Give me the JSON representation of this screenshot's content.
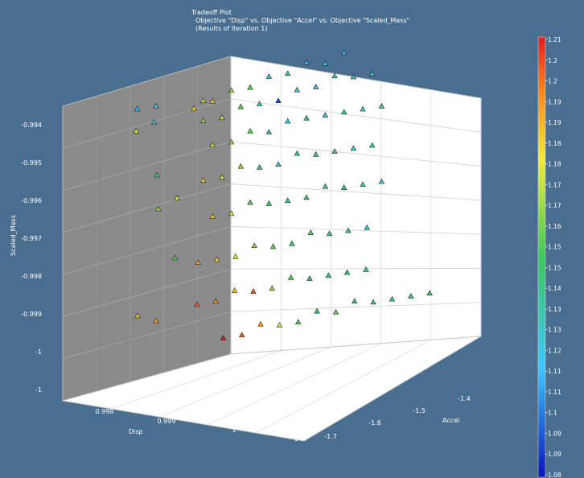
{
  "title": {
    "line1": "Tradeoff Plot",
    "line2": "Objective \"Disp\" vs. Objective \"Accel\" vs. Objective \"Scaled_Mass\"",
    "line3": "(Results of Iteration 1)"
  },
  "chart_data": {
    "type": "scatter",
    "title": "Tradeoff Plot",
    "xlabel": "Disp",
    "ylabel": "Accel",
    "zlabel": "Scaled_Mass",
    "x_ticks": [
      "0.998",
      "0.999",
      "1",
      "1"
    ],
    "y_ticks": [
      "-1.4",
      "-1.5",
      "-1.6",
      "-1.7"
    ],
    "z_ticks": [
      "-0.994",
      "-0.995",
      "-0.996",
      "-0.997",
      "-0.998",
      "-0.999",
      "-1",
      "-1"
    ],
    "colorbar_ticks": [
      "1.21",
      "1.2",
      "1.2",
      "1.19",
      "1.19",
      "1.18",
      "1.18",
      "1.17",
      "1.17",
      "1.16",
      "1.15",
      "1.15",
      "1.14",
      "1.13",
      "1.13",
      "1.12",
      "1.11",
      "1.11",
      "1.1",
      "1.09",
      "1.09",
      "1.08"
    ],
    "colorbar_range": [
      1.08,
      1.21
    ],
    "marker": "triangle",
    "grid": true,
    "points": [
      {
        "disp": 0.9996,
        "accel": -1.64,
        "mass": -0.9941,
        "c": 1.18
      },
      {
        "disp": 0.9997,
        "accel": -1.63,
        "mass": -0.994,
        "c": 1.17
      },
      {
        "disp": 0.9998,
        "accel": -1.62,
        "mass": -0.9941,
        "c": 1.18
      },
      {
        "disp": 1.0,
        "accel": -1.6,
        "mass": -0.994,
        "c": 1.16
      },
      {
        "disp": 1.0002,
        "accel": -1.58,
        "mass": -0.9941,
        "c": 1.15
      },
      {
        "disp": 1.0004,
        "accel": -1.56,
        "mass": -0.994,
        "c": 1.12
      },
      {
        "disp": 1.0006,
        "accel": -1.54,
        "mass": -0.9941,
        "c": 1.13
      },
      {
        "disp": 1.0008,
        "accel": -1.52,
        "mass": -0.994,
        "c": 1.11
      },
      {
        "disp": 1.001,
        "accel": -1.5,
        "mass": -0.9942,
        "c": 1.12
      },
      {
        "disp": 1.0012,
        "accel": -1.48,
        "mass": -0.9941,
        "c": 1.11
      },
      {
        "disp": 0.9997,
        "accel": -1.63,
        "mass": -0.9945,
        "c": 1.16
      },
      {
        "disp": 0.9999,
        "accel": -1.61,
        "mass": -0.9946,
        "c": 1.17
      },
      {
        "disp": 1.0001,
        "accel": -1.59,
        "mass": -0.9945,
        "c": 1.15
      },
      {
        "disp": 1.0003,
        "accel": -1.57,
        "mass": -0.9946,
        "c": 1.13
      },
      {
        "disp": 1.0005,
        "accel": -1.55,
        "mass": -0.9947,
        "c": 1.09
      },
      {
        "disp": 1.0007,
        "accel": -1.53,
        "mass": -0.9946,
        "c": 1.12
      },
      {
        "disp": 1.0009,
        "accel": -1.51,
        "mass": -0.9947,
        "c": 1.11
      },
      {
        "disp": 1.0011,
        "accel": -1.49,
        "mass": -0.9946,
        "c": 1.12
      },
      {
        "disp": 1.0013,
        "accel": -1.47,
        "mass": -0.9948,
        "c": 1.13
      },
      {
        "disp": 1.0015,
        "accel": -1.45,
        "mass": -0.9949,
        "c": 1.12
      },
      {
        "disp": 0.9998,
        "accel": -1.62,
        "mass": -0.9952,
        "c": 1.17
      },
      {
        "disp": 1.0,
        "accel": -1.6,
        "mass": -0.9953,
        "c": 1.16
      },
      {
        "disp": 1.0002,
        "accel": -1.58,
        "mass": -0.9952,
        "c": 1.15
      },
      {
        "disp": 1.0004,
        "accel": -1.56,
        "mass": -0.9954,
        "c": 1.13
      },
      {
        "disp": 1.0006,
        "accel": -1.54,
        "mass": -0.9953,
        "c": 1.12
      },
      {
        "disp": 1.0008,
        "accel": -1.52,
        "mass": -0.9954,
        "c": 1.14
      },
      {
        "disp": 1.001,
        "accel": -1.5,
        "mass": -0.9955,
        "c": 1.12
      },
      {
        "disp": 1.0012,
        "accel": -1.48,
        "mass": -0.9956,
        "c": 1.13
      },
      {
        "disp": 1.0014,
        "accel": -1.46,
        "mass": -0.9957,
        "c": 1.12
      },
      {
        "disp": 1.0016,
        "accel": -1.44,
        "mass": -0.9958,
        "c": 1.13
      },
      {
        "disp": 0.9997,
        "accel": -1.63,
        "mass": -0.996,
        "c": 1.18
      },
      {
        "disp": 0.9999,
        "accel": -1.61,
        "mass": -0.9961,
        "c": 1.17
      },
      {
        "disp": 1.0001,
        "accel": -1.59,
        "mass": -0.996,
        "c": 1.16
      },
      {
        "disp": 1.0003,
        "accel": -1.57,
        "mass": -0.9962,
        "c": 1.14
      },
      {
        "disp": 1.0005,
        "accel": -1.55,
        "mass": -0.9963,
        "c": 1.12
      },
      {
        "disp": 1.0007,
        "accel": -1.53,
        "mass": -0.9962,
        "c": 1.13
      },
      {
        "disp": 1.0009,
        "accel": -1.51,
        "mass": -0.9964,
        "c": 1.14
      },
      {
        "disp": 1.0011,
        "accel": -1.49,
        "mass": -0.9965,
        "c": 1.13
      },
      {
        "disp": 1.0013,
        "accel": -1.47,
        "mass": -0.9966,
        "c": 1.12
      },
      {
        "disp": 1.0015,
        "accel": -1.45,
        "mass": -0.9967,
        "c": 1.13
      },
      {
        "disp": 0.9998,
        "accel": -1.62,
        "mass": -0.997,
        "c": 1.18
      },
      {
        "disp": 1.0,
        "accel": -1.6,
        "mass": -0.9971,
        "c": 1.17
      },
      {
        "disp": 1.0002,
        "accel": -1.58,
        "mass": -0.997,
        "c": 1.15
      },
      {
        "disp": 1.0004,
        "accel": -1.56,
        "mass": -0.9972,
        "c": 1.14
      },
      {
        "disp": 1.0006,
        "accel": -1.54,
        "mass": -0.9973,
        "c": 1.13
      },
      {
        "disp": 1.0008,
        "accel": -1.52,
        "mass": -0.9974,
        "c": 1.14
      },
      {
        "disp": 1.001,
        "accel": -1.5,
        "mass": -0.9973,
        "c": 1.13
      },
      {
        "disp": 1.0012,
        "accel": -1.48,
        "mass": -0.9975,
        "c": 1.14
      },
      {
        "disp": 1.0014,
        "accel": -1.46,
        "mass": -0.9976,
        "c": 1.13
      },
      {
        "disp": 1.0016,
        "accel": -1.44,
        "mass": -0.9977,
        "c": 1.12
      },
      {
        "disp": 0.9997,
        "accel": -1.64,
        "mass": -0.998,
        "c": 1.19
      },
      {
        "disp": 0.9999,
        "accel": -1.62,
        "mass": -0.9981,
        "c": 1.18
      },
      {
        "disp": 1.0001,
        "accel": -1.6,
        "mass": -0.9982,
        "c": 1.17
      },
      {
        "disp": 1.0003,
        "accel": -1.58,
        "mass": -0.9981,
        "c": 1.16
      },
      {
        "disp": 1.0005,
        "accel": -1.56,
        "mass": -0.9983,
        "c": 1.15
      },
      {
        "disp": 1.0007,
        "accel": -1.54,
        "mass": -0.9984,
        "c": 1.14
      },
      {
        "disp": 1.0009,
        "accel": -1.52,
        "mass": -0.9983,
        "c": 1.15
      },
      {
        "disp": 1.0011,
        "accel": -1.5,
        "mass": -0.9985,
        "c": 1.14
      },
      {
        "disp": 1.0013,
        "accel": -1.48,
        "mass": -0.9986,
        "c": 1.13
      },
      {
        "disp": 1.0015,
        "accel": -1.46,
        "mass": -0.9987,
        "c": 1.12
      },
      {
        "disp": 0.9998,
        "accel": -1.65,
        "mass": -0.999,
        "c": 1.2
      },
      {
        "disp": 1.0,
        "accel": -1.63,
        "mass": -0.9991,
        "c": 1.19
      },
      {
        "disp": 1.0002,
        "accel": -1.61,
        "mass": -0.999,
        "c": 1.18
      },
      {
        "disp": 1.0004,
        "accel": -1.59,
        "mass": -0.9992,
        "c": 1.2
      },
      {
        "disp": 1.0006,
        "accel": -1.57,
        "mass": -0.9993,
        "c": 1.16
      },
      {
        "disp": 1.0008,
        "accel": -1.55,
        "mass": -0.9992,
        "c": 1.15
      },
      {
        "disp": 1.001,
        "accel": -1.53,
        "mass": -0.9994,
        "c": 1.14
      },
      {
        "disp": 1.0012,
        "accel": -1.51,
        "mass": -0.9995,
        "c": 1.13
      },
      {
        "disp": 1.0014,
        "accel": -1.49,
        "mass": -0.9996,
        "c": 1.14
      },
      {
        "disp": 1.0016,
        "accel": -1.47,
        "mass": -0.9997,
        "c": 1.13
      },
      {
        "disp": 1.0003,
        "accel": -1.64,
        "mass": -1.0,
        "c": 1.21
      },
      {
        "disp": 1.0005,
        "accel": -1.62,
        "mass": -1.0001,
        "c": 1.2
      },
      {
        "disp": 1.0007,
        "accel": -1.6,
        "mass": -1.0,
        "c": 1.19
      },
      {
        "disp": 1.0009,
        "accel": -1.58,
        "mass": -1.0002,
        "c": 1.17
      },
      {
        "disp": 1.0011,
        "accel": -1.56,
        "mass": -1.0003,
        "c": 1.15
      },
      {
        "disp": 1.0013,
        "accel": -1.54,
        "mass": -1.0002,
        "c": 1.14
      },
      {
        "disp": 1.0015,
        "accel": -1.52,
        "mass": -1.0004,
        "c": 1.15
      },
      {
        "disp": 1.0017,
        "accel": -1.5,
        "mass": -1.0003,
        "c": 1.14
      },
      {
        "disp": 1.0019,
        "accel": -1.48,
        "mass": -1.0005,
        "c": 1.13
      },
      {
        "disp": 1.0021,
        "accel": -1.46,
        "mass": -1.0006,
        "c": 1.14
      },
      {
        "disp": 1.0023,
        "accel": -1.44,
        "mass": -1.0007,
        "c": 1.13
      },
      {
        "disp": 1.0025,
        "accel": -1.42,
        "mass": -1.0008,
        "c": 1.14
      },
      {
        "disp": 0.998,
        "accel": -1.62,
        "mass": -0.994,
        "c": 1.11
      },
      {
        "disp": 0.9982,
        "accel": -1.6,
        "mass": -0.9941,
        "c": 1.12
      },
      {
        "disp": 0.9979,
        "accel": -1.58,
        "mass": -0.9946,
        "c": 1.12
      },
      {
        "disp": 0.9981,
        "accel": -1.63,
        "mass": -0.9945,
        "c": 1.17
      },
      {
        "disp": 0.9976,
        "accel": -1.55,
        "mass": -0.9961,
        "c": 1.14
      },
      {
        "disp": 0.9985,
        "accel": -1.62,
        "mass": -0.9966,
        "c": 1.16
      },
      {
        "disp": 0.9987,
        "accel": -1.6,
        "mass": -0.9965,
        "c": 1.17
      },
      {
        "disp": 0.9984,
        "accel": -1.58,
        "mass": -0.9981,
        "c": 1.15
      },
      {
        "disp": 0.999,
        "accel": -1.7,
        "mass": -0.9988,
        "c": 1.18
      },
      {
        "disp": 0.9992,
        "accel": -1.68,
        "mass": -0.9991,
        "c": 1.19
      }
    ]
  }
}
